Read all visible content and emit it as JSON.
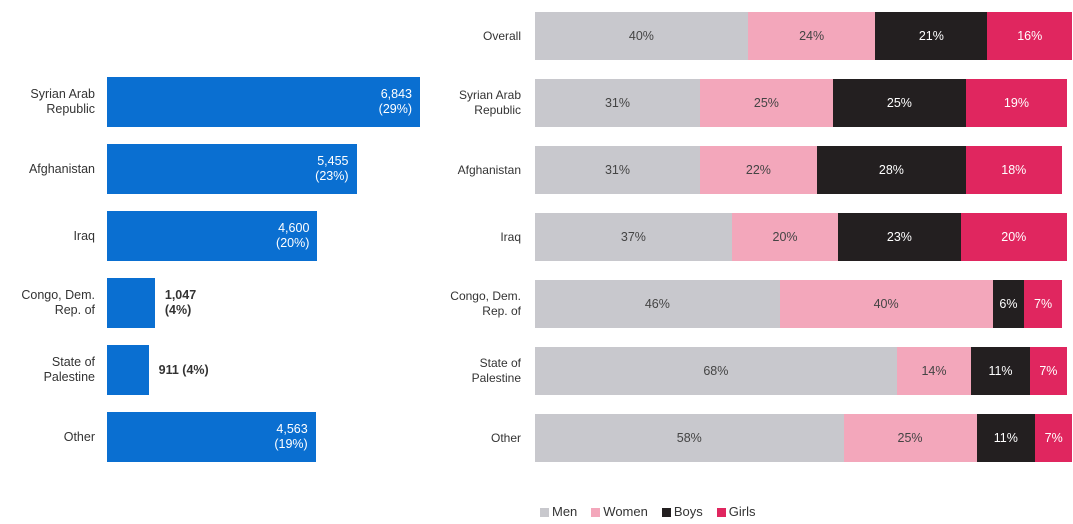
{
  "chart_data": [
    {
      "type": "hbar",
      "categories": [
        "Syrian Arab\nRepublic",
        "Afghanistan",
        "Iraq",
        "Congo, Dem.\nRep. of",
        "State of\nPalestine",
        "Other"
      ],
      "values": [
        6843,
        5455,
        4600,
        1047,
        911,
        4563
      ],
      "value_labels": [
        "6,843\n(29%)",
        "5,455\n(23%)",
        "4,600\n(20%)",
        "1,047\n(4%)",
        "911  (4%)",
        "4,563\n(19%)"
      ],
      "color": "#0a6fd1"
    },
    {
      "type": "stacked_hbar",
      "categories": [
        "Overall",
        "Syrian Arab\nRepublic",
        "Afghanistan",
        "Iraq",
        "Congo, Dem.\nRep. of",
        "State of\nPalestine",
        "Other"
      ],
      "series": [
        {
          "name": "Men",
          "color": "#c8c8cd",
          "values": [
            40,
            31,
            31,
            37,
            46,
            68,
            58
          ],
          "value_labels": [
            "40%",
            "31%",
            "31%",
            "37%",
            "46%",
            "68%",
            "58%"
          ]
        },
        {
          "name": "Women",
          "color": "#f3a7bb",
          "values": [
            24,
            25,
            22,
            20,
            40,
            14,
            25
          ],
          "value_labels": [
            "24%",
            "25%",
            "22%",
            "20%",
            "40%",
            "14%",
            "25%"
          ]
        },
        {
          "name": "Boys",
          "color": "#231f20",
          "values": [
            21,
            25,
            28,
            23,
            6,
            11,
            11
          ],
          "value_labels": [
            "21%",
            "25%",
            "28%",
            "23%",
            "6%",
            "11%",
            "11%"
          ]
        },
        {
          "name": "Girls",
          "color": "#e0265f",
          "values": [
            16,
            19,
            18,
            20,
            7,
            7,
            7
          ],
          "value_labels": [
            "16%",
            "19%",
            "18%",
            "20%",
            "7%",
            "7%",
            "7%"
          ]
        }
      ]
    }
  ]
}
